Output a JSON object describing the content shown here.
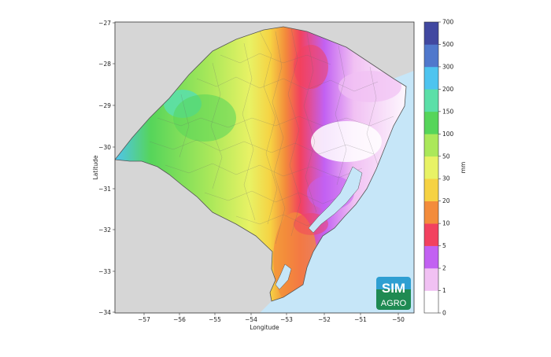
{
  "map": {
    "x_axis": {
      "label": "Longitude",
      "ticks": [
        "−57",
        "−56",
        "−55",
        "−54",
        "−53",
        "−52",
        "−51",
        "−50"
      ],
      "range": [
        -57.8,
        -49.6
      ]
    },
    "y_axis": {
      "label": "Latitude",
      "ticks": [
        "−27",
        "−28",
        "−29",
        "−30",
        "−31",
        "−32",
        "−33",
        "−34"
      ],
      "range": [
        -34,
        -27
      ]
    },
    "colors": {
      "ocean": "#c6e6f8",
      "land_outside": "#d6d6d6",
      "state_border": "#555555",
      "municipal_lines": "#6b6b6b"
    }
  },
  "colorbar": {
    "unit": "mm",
    "ticks": [
      "0",
      "1",
      "2",
      "5",
      "10",
      "20",
      "30",
      "50",
      "100",
      "150",
      "200",
      "300",
      "500",
      "700"
    ],
    "colors": [
      "#ffffff",
      "#f1c1f3",
      "#c261f2",
      "#f2415f",
      "#f38c3b",
      "#f6d243",
      "#e8f265",
      "#abe85a",
      "#56d55a",
      "#5bdfa8",
      "#4ec4ef",
      "#5078cc",
      "#4148a0"
    ]
  },
  "logo": {
    "line1": "SIM",
    "line2": "AGRO",
    "top_color": "#2f9fd2",
    "bottom_color": "#1f8a52"
  }
}
